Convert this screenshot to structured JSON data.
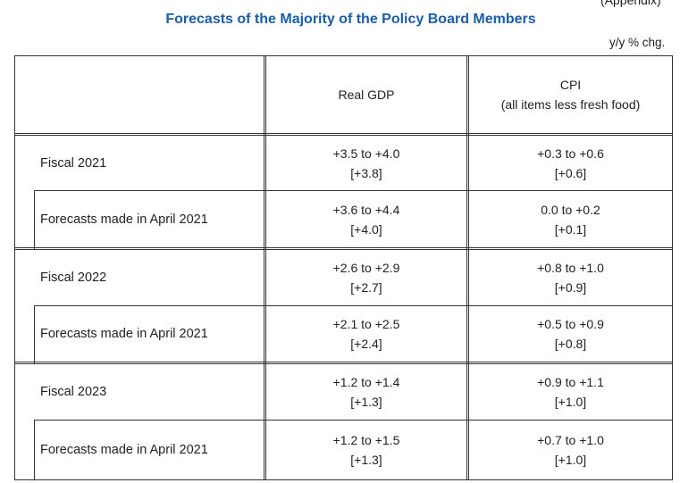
{
  "appendix": "(Appendix)",
  "title": "Forecasts of the Majority of the Policy Board Members",
  "unit": "y/y % chg.",
  "columns": {
    "gdp": "Real GDP",
    "cpi_line1": "CPI",
    "cpi_line2": "(all items less fresh food)"
  },
  "rows": [
    {
      "label": "Fiscal 2021",
      "gdp_range": "+3.5 to +4.0",
      "gdp_median": "[+3.8]",
      "cpi_range": "+0.3 to +0.6",
      "cpi_median": "[+0.6]"
    },
    {
      "label": "Forecasts made in April 2021",
      "gdp_range": "+3.6 to +4.4",
      "gdp_median": "[+4.0]",
      "cpi_range": "0.0 to +0.2",
      "cpi_median": "[+0.1]"
    },
    {
      "label": "Fiscal 2022",
      "gdp_range": "+2.6 to +2.9",
      "gdp_median": "[+2.7]",
      "cpi_range": "+0.8 to +1.0",
      "cpi_median": "[+0.9]"
    },
    {
      "label": "Forecasts made in April 2021",
      "gdp_range": "+2.1 to +2.5",
      "gdp_median": "[+2.4]",
      "cpi_range": "+0.5 to +0.9",
      "cpi_median": "[+0.8]"
    },
    {
      "label": "Fiscal 2023",
      "gdp_range": "+1.2 to +1.4",
      "gdp_median": "[+1.3]",
      "cpi_range": "+0.9 to +1.1",
      "cpi_median": "[+1.0]"
    },
    {
      "label": "Forecasts made in April 2021",
      "gdp_range": "+1.2 to +1.5",
      "gdp_median": "[+1.3]",
      "cpi_range": "+0.7 to +1.0",
      "cpi_median": "[+1.0]"
    }
  ]
}
